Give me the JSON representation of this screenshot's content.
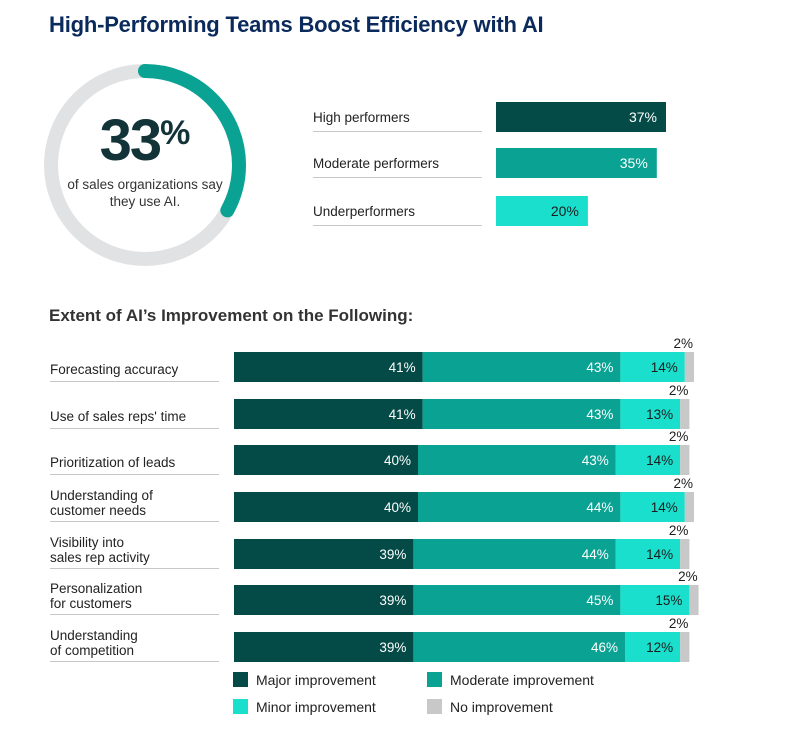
{
  "title": "High-Performing Teams Boost Efficiency with AI",
  "colors": {
    "major": "#044b47",
    "moderate": "#0aa293",
    "minor": "#1adfcc",
    "none": "#c8c8c8",
    "donut_track": "#e1e2e3",
    "donut_arc": "#0aa293",
    "title": "#0b2a5c"
  },
  "donut": {
    "value_number": "33",
    "value_symbol": "%",
    "caption": "of sales organizations say they use AI.",
    "fraction": 0.33
  },
  "chart_data": [
    {
      "type": "bar",
      "orientation": "horizontal",
      "categories": [
        "High performers",
        "Moderate performers",
        "Underperformers"
      ],
      "values": [
        37,
        35,
        20
      ],
      "labels": [
        "37%",
        "35%",
        "20%"
      ],
      "colors": [
        "#044b47",
        "#0aa293",
        "#1adfcc"
      ],
      "title": "",
      "xlim": [
        0,
        37
      ]
    },
    {
      "type": "bar",
      "orientation": "horizontal",
      "stacked": true,
      "title": "Extent of AI’s Improvement on the Following:",
      "categories": [
        [
          "Forecasting accuracy"
        ],
        [
          "Use of sales reps' time"
        ],
        [
          "Prioritization of leads"
        ],
        [
          "Understanding of",
          "customer needs"
        ],
        [
          "Visibility into",
          "sales rep activity"
        ],
        [
          "Personalization",
          "for customers"
        ],
        [
          "Understanding",
          "of competition"
        ]
      ],
      "series": [
        {
          "name": "Major improvement",
          "color": "#044b47",
          "values": [
            41,
            41,
            40,
            40,
            39,
            39,
            39
          ]
        },
        {
          "name": "Moderate improvement",
          "color": "#0aa293",
          "values": [
            43,
            43,
            43,
            44,
            44,
            45,
            46
          ]
        },
        {
          "name": "Minor improvement",
          "color": "#1adfcc",
          "values": [
            14,
            13,
            14,
            14,
            14,
            15,
            12
          ]
        },
        {
          "name": "No improvement",
          "color": "#c8c8c8",
          "values": [
            2,
            2,
            2,
            2,
            2,
            2,
            2
          ]
        }
      ],
      "xlim": [
        0,
        100
      ],
      "legend": "bottom"
    }
  ]
}
